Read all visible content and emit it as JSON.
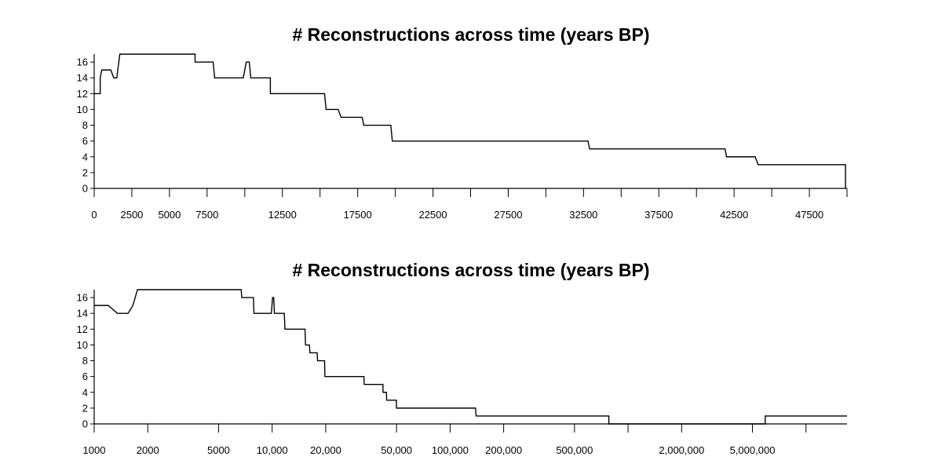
{
  "chart_data": [
    {
      "type": "line",
      "title": "# Reconstructions across time (years BP)",
      "xscale": "linear",
      "xlim": [
        0,
        50000
      ],
      "ylim": [
        0,
        17
      ],
      "yticks": [
        0,
        2,
        4,
        6,
        8,
        10,
        12,
        14,
        16
      ],
      "xticks_labeled": [
        0,
        2500,
        5000,
        7500,
        12500,
        17500,
        22500,
        27500,
        32500,
        37500,
        42500,
        47500
      ],
      "xtick_labels": [
        "0",
        "2500",
        "5000",
        "7500",
        "12500",
        "17500",
        "22500",
        "27500",
        "32500",
        "37500",
        "42500",
        "47500"
      ],
      "xticks_unlabeled": [
        10000,
        15000,
        20000,
        25000,
        30000,
        35000,
        40000,
        45000,
        50000
      ],
      "grid": false,
      "series": [
        {
          "x": [
            0,
            400,
            400,
            500,
            1100,
            1300,
            1500,
            1700,
            6700,
            6700,
            7900,
            8000,
            9900,
            10000,
            10100,
            10300,
            10400,
            11700,
            11700,
            15300,
            15400,
            16200,
            16400,
            17800,
            17900,
            19700,
            19800,
            32800,
            32900,
            41900,
            42000,
            43900,
            44100,
            49900,
            49900
          ],
          "y": [
            12,
            12,
            14,
            15,
            15,
            14,
            14,
            17,
            17,
            16,
            16,
            14,
            14,
            15,
            16,
            16,
            14,
            14,
            12,
            12,
            10,
            10,
            9,
            9,
            8,
            8,
            6,
            6,
            5,
            5,
            4,
            4,
            3,
            3,
            0
          ]
        }
      ]
    },
    {
      "type": "line",
      "title": "# Reconstructions across time (years BP)",
      "xscale": "log",
      "xlim": [
        1000,
        17000000
      ],
      "ylim": [
        0,
        17
      ],
      "yticks": [
        0,
        2,
        4,
        6,
        8,
        10,
        12,
        14,
        16
      ],
      "xticks_labeled": [
        1000,
        2000,
        5000,
        10000,
        20000,
        50000,
        100000,
        200000,
        500000,
        2000000,
        5000000
      ],
      "xtick_labels": [
        "1000",
        "2000",
        "5000",
        "10,000",
        "20,000",
        "50,000",
        "100,000",
        "200,000",
        "500,000",
        "2,000,000",
        "5,000,000"
      ],
      "xticks_unlabeled": [
        1000000,
        10000000
      ],
      "grid": false,
      "series": [
        {
          "x": [
            1000,
            1200,
            1350,
            1550,
            1650,
            1750,
            6700,
            6750,
            7850,
            7900,
            9900,
            10050,
            10200,
            10300,
            11700,
            11800,
            15300,
            15400,
            16200,
            16300,
            17900,
            18000,
            19700,
            19800,
            32800,
            32900,
            41900,
            42000,
            43900,
            44000,
            49900,
            50000,
            139000,
            140000,
            780000,
            780000,
            5900000,
            5900000,
            17000000
          ],
          "y": [
            15,
            15,
            14,
            14,
            15,
            17,
            17,
            16,
            16,
            14,
            14,
            16,
            16,
            14,
            14,
            12,
            12,
            10,
            10,
            9,
            9,
            8,
            8,
            6,
            6,
            5,
            5,
            4,
            4,
            3,
            3,
            2,
            2,
            1,
            1,
            0,
            0,
            1,
            1
          ]
        }
      ]
    }
  ]
}
